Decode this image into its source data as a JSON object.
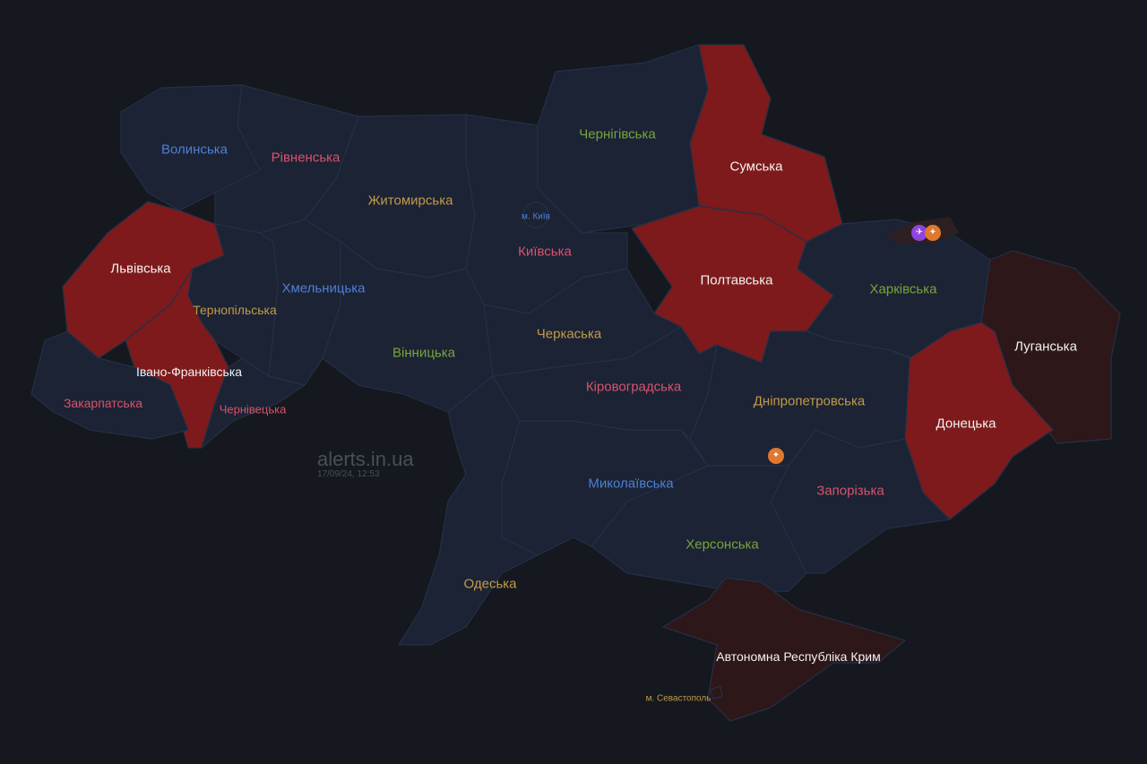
{
  "watermark": {
    "site": "alerts.in.ua",
    "timestamp": "17/09/24, 12:53"
  },
  "colors": {
    "background": "#15181e",
    "calm": "#1b2334",
    "alert": "#7e1a1b",
    "past_alert": "#2d1719"
  },
  "regions": [
    {
      "id": "volynska",
      "name": "Волинська",
      "status": "calm"
    },
    {
      "id": "rivnenska",
      "name": "Рівненська",
      "status": "calm"
    },
    {
      "id": "zhytomyrska",
      "name": "Житомирська",
      "status": "calm"
    },
    {
      "id": "kyivska",
      "name": "Київська",
      "status": "calm"
    },
    {
      "id": "kyiv",
      "name": "м. Київ",
      "status": "calm"
    },
    {
      "id": "chernihivska",
      "name": "Чернігівська",
      "status": "calm"
    },
    {
      "id": "sumska",
      "name": "Сумська",
      "status": "alert"
    },
    {
      "id": "poltavska",
      "name": "Полтавська",
      "status": "alert"
    },
    {
      "id": "kharkivska",
      "name": "Харківська",
      "status": "calm"
    },
    {
      "id": "luhanska",
      "name": "Луганська",
      "status": "occupied"
    },
    {
      "id": "donetska",
      "name": "Донецька",
      "status": "alert"
    },
    {
      "id": "dnipropetrovska",
      "name": "Дніпропетровська",
      "status": "calm"
    },
    {
      "id": "zaporizka",
      "name": "Запорізька",
      "status": "calm"
    },
    {
      "id": "khersonska",
      "name": "Херсонська",
      "status": "calm"
    },
    {
      "id": "crimea",
      "name": "Автономна Республіка Крим",
      "status": "occupied"
    },
    {
      "id": "sevastopol",
      "name": "м. Севастополь",
      "status": "occupied"
    },
    {
      "id": "mykolaivska",
      "name": "Миколаївська",
      "status": "calm"
    },
    {
      "id": "kirovohradska",
      "name": "Кіровоградська",
      "status": "calm"
    },
    {
      "id": "cherkaska",
      "name": "Черкаська",
      "status": "calm"
    },
    {
      "id": "odeska",
      "name": "Одеська",
      "status": "calm"
    },
    {
      "id": "vinnytska",
      "name": "Вінницька",
      "status": "calm"
    },
    {
      "id": "khmelnytska",
      "name": "Хмельницька",
      "status": "calm"
    },
    {
      "id": "ternopilska",
      "name": "Тернопільська",
      "status": "calm"
    },
    {
      "id": "lvivska",
      "name": "Львівська",
      "status": "alert"
    },
    {
      "id": "ivano_frankivska",
      "name": "Івано-Франківська",
      "status": "alert"
    },
    {
      "id": "zakarpatska",
      "name": "Закарпатська",
      "status": "calm"
    },
    {
      "id": "chernivetska",
      "name": "Чернівецька",
      "status": "calm"
    }
  ],
  "threat_icons": [
    {
      "region": "kharkivska",
      "icon": "drone-icon",
      "color": "#8e44e0"
    },
    {
      "region": "kharkivska",
      "icon": "artillery-icon",
      "color": "#e0782e"
    },
    {
      "region": "dnipropetrovska",
      "icon": "artillery-icon",
      "color": "#e0782e"
    }
  ]
}
